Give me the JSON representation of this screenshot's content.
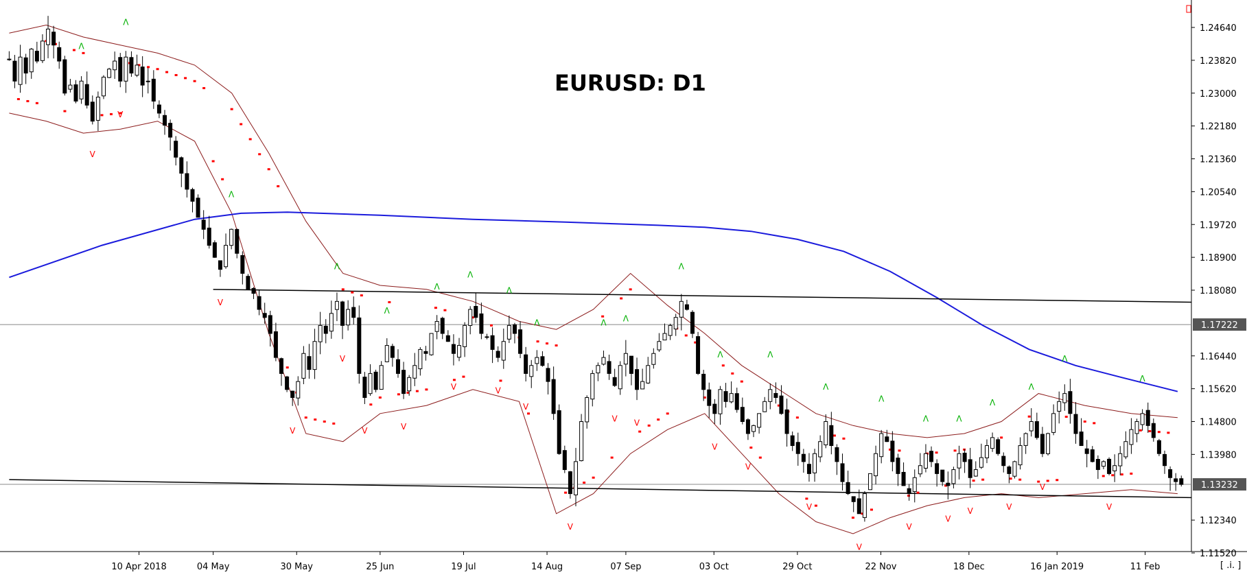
{
  "colors": {
    "background": "#ffffff",
    "up_candle": "#ffffff",
    "down_candle": "#000000",
    "candle_outline": "#000000",
    "bollinger": "#8b1a1a",
    "ma": "#1a1adc",
    "sar": "#ff0000",
    "fractal_up": "#00b000",
    "fractal_down": "#ff0000",
    "trendline": "#000000",
    "level_line": "#888888",
    "tag_bg": "#555555",
    "tag_text": "#ffffff"
  },
  "chart_data": {
    "type": "candlestick",
    "title": "EURUSD: D1",
    "symbol": "EURUSD",
    "timeframe": "D1",
    "ylim": [
      1.1152,
      1.2464
    ],
    "y_ticks": [
      "1.24640",
      "1.23820",
      "1.23000",
      "1.22180",
      "1.21360",
      "1.20540",
      "1.19720",
      "1.18900",
      "1.18080",
      "1.16440",
      "1.15620",
      "1.14800",
      "1.13980",
      "1.12340",
      "1.11520"
    ],
    "x_ticks": [
      {
        "label": "10 Apr 2018",
        "index": 28
      },
      {
        "label": "04 May",
        "index": 44
      },
      {
        "label": "30 May",
        "index": 62
      },
      {
        "label": "25 Jun",
        "index": 80
      },
      {
        "label": "19 Jul",
        "index": 98
      },
      {
        "label": "14 Aug",
        "index": 116
      },
      {
        "label": "07 Sep",
        "index": 133
      },
      {
        "label": "03 Oct",
        "index": 152
      },
      {
        "label": "29 Oct",
        "index": 170
      },
      {
        "label": "22 Nov",
        "index": 188
      },
      {
        "label": "18 Dec",
        "index": 207
      },
      {
        "label": "16 Jan 2019",
        "index": 226
      },
      {
        "label": "11 Feb",
        "index": 245
      }
    ],
    "price_tags": [
      {
        "label": "1.17222",
        "value": 1.17222
      },
      {
        "label": "1.13232",
        "value": 1.13232
      }
    ],
    "corner_label": "[ .i. ]",
    "close_path": [
      1.2385,
      1.233,
      1.239,
      1.235,
      1.241,
      1.238,
      1.243,
      1.246,
      1.242,
      1.238,
      1.23,
      1.232,
      1.228,
      1.233,
      1.227,
      1.223,
      1.229,
      1.234,
      1.236,
      1.238,
      1.233,
      1.239,
      1.235,
      1.237,
      1.232,
      1.233,
      1.228,
      1.225,
      1.222,
      1.219,
      1.214,
      1.21,
      1.206,
      1.203,
      1.199,
      1.196,
      1.192,
      1.189,
      1.186,
      1.192,
      1.196,
      1.19,
      1.185,
      1.181,
      1.18,
      1.176,
      1.174,
      1.17,
      1.164,
      1.16,
      1.156,
      1.154,
      1.158,
      1.165,
      1.161,
      1.168,
      1.172,
      1.17,
      1.175,
      1.178,
      1.172,
      1.176,
      1.174,
      1.16,
      1.154,
      1.16,
      1.156,
      1.162,
      1.167,
      1.164,
      1.16,
      1.155,
      1.159,
      1.162,
      1.166,
      1.165,
      1.17,
      1.173,
      1.17,
      1.168,
      1.165,
      1.167,
      1.172,
      1.176,
      1.174,
      1.17,
      1.169,
      1.166,
      1.164,
      1.168,
      1.172,
      1.17,
      1.165,
      1.16,
      1.162,
      1.164,
      1.162,
      1.158,
      1.15,
      1.14,
      1.136,
      1.13,
      1.138,
      1.148,
      1.154,
      1.16,
      1.162,
      1.164,
      1.16,
      1.157,
      1.162,
      1.165,
      1.16,
      1.156,
      1.158,
      1.162,
      1.165,
      1.168,
      1.17,
      1.172,
      1.174,
      1.178,
      1.176,
      1.17,
      1.16,
      1.156,
      1.152,
      1.15,
      1.156,
      1.153,
      1.155,
      1.151,
      1.148,
      1.145,
      1.147,
      1.15,
      1.153,
      1.156,
      1.154,
      1.15,
      1.145,
      1.142,
      1.14,
      1.138,
      1.135,
      1.14,
      1.143,
      1.148,
      1.142,
      1.138,
      1.133,
      1.13,
      1.128,
      1.125,
      1.13,
      1.135,
      1.14,
      1.145,
      1.143,
      1.138,
      1.135,
      1.132,
      1.13,
      1.134,
      1.137,
      1.14,
      1.138,
      1.135,
      1.133,
      1.132,
      1.136,
      1.14,
      1.138,
      1.134,
      1.136,
      1.139,
      1.142,
      1.144,
      1.14,
      1.137,
      1.135,
      1.138,
      1.142,
      1.145,
      1.148,
      1.144,
      1.14,
      1.145,
      1.15,
      1.153,
      1.155,
      1.15,
      1.145,
      1.142,
      1.14,
      1.138,
      1.136,
      1.138,
      1.135,
      1.137,
      1.14,
      1.143,
      1.146,
      1.148,
      1.15,
      1.147,
      1.144,
      1.14,
      1.137,
      1.134,
      1.133,
      1.1323
    ],
    "trendlines": [
      {
        "start_index": 44,
        "start_value": 1.181,
        "end_index": 299,
        "end_value": 1.1778
      },
      {
        "start_index": 0,
        "start_value": 1.1335,
        "end_index": 299,
        "end_value": 1.129
      }
    ],
    "levels": [
      1.17222,
      1.13232
    ],
    "ma_path": [
      [
        0,
        1.184
      ],
      [
        20,
        1.192
      ],
      [
        40,
        1.1985
      ],
      [
        50,
        1.2
      ],
      [
        60,
        1.2003
      ],
      [
        80,
        1.1995
      ],
      [
        100,
        1.1985
      ],
      [
        120,
        1.1978
      ],
      [
        140,
        1.197
      ],
      [
        150,
        1.1965
      ],
      [
        160,
        1.1955
      ],
      [
        170,
        1.1935
      ],
      [
        180,
        1.1905
      ],
      [
        190,
        1.1855
      ],
      [
        200,
        1.179
      ],
      [
        210,
        1.172
      ],
      [
        220,
        1.166
      ],
      [
        230,
        1.162
      ],
      [
        240,
        1.159
      ],
      [
        252,
        1.1555
      ]
    ],
    "bollinger_upper": [
      [
        0,
        1.245
      ],
      [
        8,
        1.247
      ],
      [
        16,
        1.244
      ],
      [
        24,
        1.242
      ],
      [
        32,
        1.24
      ],
      [
        40,
        1.237
      ],
      [
        48,
        1.23
      ],
      [
        56,
        1.215
      ],
      [
        64,
        1.198
      ],
      [
        72,
        1.185
      ],
      [
        80,
        1.182
      ],
      [
        90,
        1.181
      ],
      [
        100,
        1.178
      ],
      [
        110,
        1.173
      ],
      [
        118,
        1.171
      ],
      [
        126,
        1.176
      ],
      [
        134,
        1.185
      ],
      [
        142,
        1.177
      ],
      [
        150,
        1.17
      ],
      [
        158,
        1.162
      ],
      [
        166,
        1.156
      ],
      [
        174,
        1.15
      ],
      [
        182,
        1.147
      ],
      [
        190,
        1.145
      ],
      [
        198,
        1.144
      ],
      [
        206,
        1.145
      ],
      [
        214,
        1.148
      ],
      [
        222,
        1.155
      ],
      [
        232,
        1.152
      ],
      [
        242,
        1.15
      ],
      [
        252,
        1.149
      ]
    ],
    "bollinger_lower": [
      [
        0,
        1.225
      ],
      [
        8,
        1.223
      ],
      [
        16,
        1.22
      ],
      [
        24,
        1.221
      ],
      [
        32,
        1.223
      ],
      [
        40,
        1.218
      ],
      [
        48,
        1.2
      ],
      [
        56,
        1.17
      ],
      [
        64,
        1.145
      ],
      [
        72,
        1.143
      ],
      [
        80,
        1.15
      ],
      [
        90,
        1.152
      ],
      [
        100,
        1.156
      ],
      [
        110,
        1.153
      ],
      [
        118,
        1.125
      ],
      [
        126,
        1.13
      ],
      [
        134,
        1.14
      ],
      [
        142,
        1.146
      ],
      [
        150,
        1.15
      ],
      [
        158,
        1.14
      ],
      [
        166,
        1.13
      ],
      [
        174,
        1.123
      ],
      [
        182,
        1.12
      ],
      [
        190,
        1.124
      ],
      [
        198,
        1.127
      ],
      [
        206,
        1.129
      ],
      [
        214,
        1.13
      ],
      [
        222,
        1.129
      ],
      [
        232,
        1.13
      ],
      [
        242,
        1.131
      ],
      [
        252,
        1.13
      ]
    ]
  }
}
